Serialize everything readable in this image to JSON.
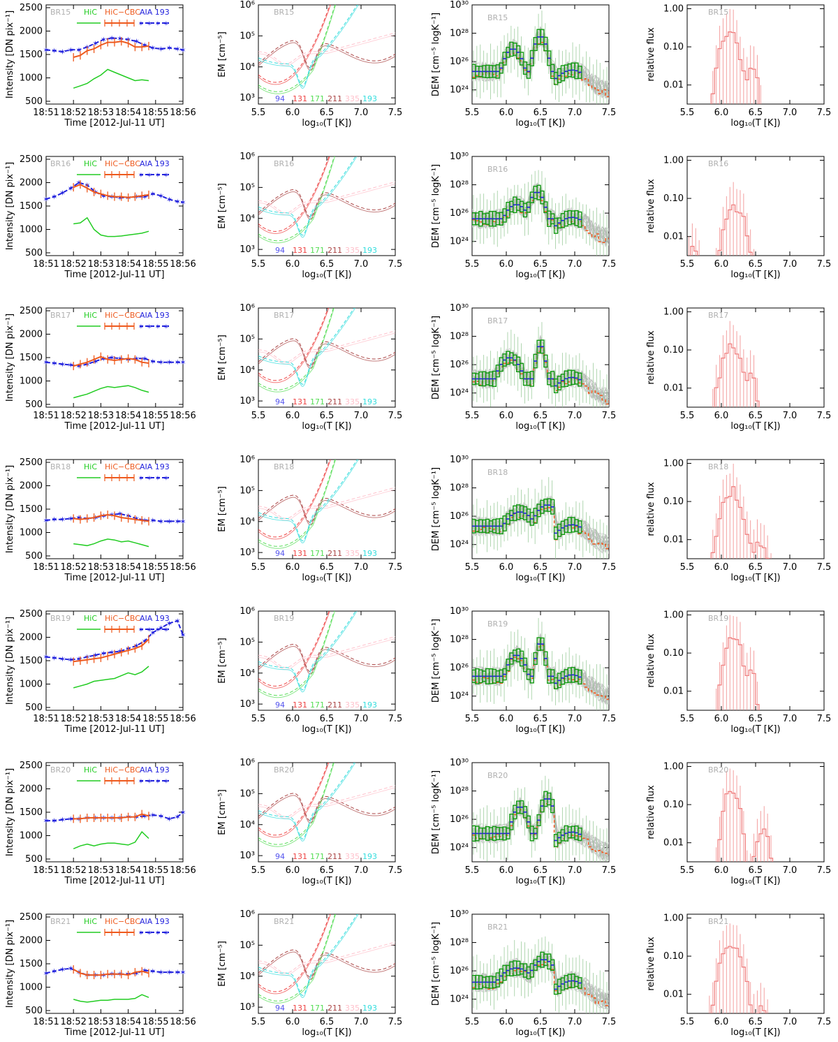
{
  "chart_data": {
    "type": "line",
    "title": "",
    "legend": {
      "hic": "HiC",
      "hic_cbc": "HiC−CBC",
      "aia193": "AIA 193"
    },
    "colors": {
      "hic": "#22cc22",
      "hic_cbc": "#ee5a1e",
      "aia": "#2222dd",
      "ch94": "#5555ee",
      "ch131": "#ee4444",
      "ch171": "#55dd55",
      "ch211": "#aa4444",
      "ch335": "#ffc0cb",
      "ch193": "#33dddd",
      "dem_box": "#119911",
      "dem_grey": "#b8b8b8",
      "flux": "#f08080"
    },
    "columns": {
      "lightcurve": {
        "xlabel": "Time [2012-Jul-11 UT]",
        "ylabel": "Intensity [DN pix⁻¹]",
        "xticks": [
          "18:51",
          "18:52",
          "18:53",
          "18:54",
          "18:55",
          "18:56"
        ],
        "yticks": [
          "500",
          "1000",
          "1500",
          "2000",
          "2500"
        ],
        "xlim": [
          0,
          5
        ],
        "ylim": [
          500,
          2500
        ]
      },
      "em": {
        "xlabel": "log₁₀(T [K])",
        "ylabel": "EM [cm⁻⁵]",
        "xticks": [
          "5.5",
          "6.0",
          "6.5",
          "7.0",
          "7.5"
        ],
        "yticks": [
          "10³",
          "10⁴",
          "10⁵",
          "10⁶"
        ],
        "xlim": [
          5.5,
          7.5
        ],
        "ylim_log": [
          2.8,
          6.0
        ],
        "channels": [
          "94",
          "131",
          "171",
          "211",
          "335",
          "193"
        ]
      },
      "dem": {
        "xlabel": "log₁₀(T [K])",
        "ylabel": "DEM [cm⁻⁵ logK⁻¹]",
        "xticks": [
          "5.5",
          "6.0",
          "6.5",
          "7.0",
          "7.5"
        ],
        "yticks": [
          "10²⁴",
          "10²⁶",
          "10²⁸",
          "10³⁰"
        ],
        "xlim": [
          5.5,
          7.5
        ],
        "ylim_log": [
          23,
          30
        ]
      },
      "flux": {
        "xlabel": "log₁₀(T [K])",
        "ylabel": "relative flux",
        "xticks": [
          "5.5",
          "6.0",
          "6.5",
          "7.0",
          "7.5"
        ],
        "yticks": [
          "0.01",
          "0.10",
          "1.00"
        ],
        "xlim": [
          5.5,
          7.5
        ],
        "ylim_log": [
          -2.5,
          0.1
        ]
      }
    },
    "rows": [
      {
        "id": "BR15",
        "lightcurve": {
          "aia_t": [
            0.0,
            0.3,
            0.6,
            0.9,
            1.2,
            1.5,
            1.8,
            2.1,
            2.4,
            2.7,
            3.0,
            3.3,
            3.6,
            3.9,
            4.2,
            4.5,
            4.8,
            5.0
          ],
          "aia_v": [
            1600,
            1580,
            1560,
            1600,
            1600,
            1660,
            1740,
            1820,
            1850,
            1840,
            1820,
            1780,
            1700,
            1640,
            1620,
            1640,
            1620,
            1600
          ],
          "cbc_t": [
            1.0,
            1.25,
            1.5,
            1.75,
            2.0,
            2.25,
            2.5,
            2.75,
            3.0,
            3.25,
            3.5,
            3.75
          ],
          "cbc_v": [
            1440,
            1480,
            1580,
            1620,
            1700,
            1760,
            1760,
            1780,
            1740,
            1660,
            1660,
            1680
          ],
          "hic_t": [
            1.0,
            1.25,
            1.5,
            1.75,
            2.0,
            2.25,
            2.5,
            2.75,
            3.0,
            3.25,
            3.5,
            3.75
          ],
          "hic_v": [
            780,
            830,
            880,
            980,
            1060,
            1180,
            1120,
            1060,
            1000,
            940,
            960,
            940
          ]
        },
        "dem_peaks": [
          [
            6.1,
            26.9,
            0.15
          ],
          [
            6.5,
            27.8,
            0.1
          ]
        ],
        "dem_base": 25.3,
        "flux_peaks": [
          [
            6.12,
            0.3,
            0.12
          ],
          [
            6.45,
            0.03,
            0.08
          ]
        ],
        "em_y": 3.3
      },
      {
        "id": "BR16",
        "lightcurve": {
          "aia_t": [
            0.0,
            0.3,
            0.6,
            0.9,
            1.2,
            1.5,
            1.8,
            2.1,
            2.4,
            2.7,
            3.0,
            3.3,
            3.6,
            3.9,
            4.2,
            4.5,
            4.8,
            5.0
          ],
          "aia_v": [
            1650,
            1700,
            1780,
            1880,
            2000,
            1950,
            1800,
            1720,
            1700,
            1680,
            1680,
            1700,
            1700,
            1760,
            1720,
            1640,
            1600,
            1580
          ],
          "cbc_t": [
            1.0,
            1.25,
            1.5,
            1.75,
            2.0,
            2.25,
            2.5,
            2.75,
            3.0,
            3.25,
            3.5,
            3.75
          ],
          "cbc_v": [
            1900,
            1960,
            1880,
            1800,
            1760,
            1720,
            1700,
            1700,
            1680,
            1700,
            1720,
            1740
          ],
          "hic_t": [
            1.0,
            1.25,
            1.5,
            1.75,
            2.0,
            2.25,
            2.5,
            2.75,
            3.0,
            3.25,
            3.5,
            3.75
          ],
          "hic_v": [
            1120,
            1140,
            1250,
            1000,
            880,
            850,
            850,
            860,
            880,
            900,
            920,
            960
          ]
        },
        "dem_peaks": [
          [
            6.15,
            26.6,
            0.2
          ],
          [
            6.45,
            27.5,
            0.12
          ]
        ],
        "dem_base": 25.6,
        "flux_peaks": [
          [
            6.2,
            0.06,
            0.14
          ],
          [
            5.6,
            0.005,
            0.08
          ]
        ],
        "em_y": 3.2
      },
      {
        "id": "BR17",
        "lightcurve": {
          "aia_t": [
            0.0,
            0.3,
            0.6,
            0.9,
            1.2,
            1.5,
            1.8,
            2.1,
            2.4,
            2.7,
            3.0,
            3.3,
            3.6,
            3.9,
            4.2,
            4.5,
            4.8,
            5.0
          ],
          "aia_v": [
            1400,
            1380,
            1360,
            1340,
            1320,
            1360,
            1420,
            1480,
            1500,
            1480,
            1460,
            1480,
            1480,
            1420,
            1400,
            1400,
            1400,
            1400
          ],
          "cbc_t": [
            1.0,
            1.25,
            1.5,
            1.75,
            2.0,
            2.25,
            2.5,
            2.75,
            3.0,
            3.25,
            3.5,
            3.75
          ],
          "cbc_v": [
            1320,
            1360,
            1400,
            1460,
            1520,
            1460,
            1440,
            1460,
            1480,
            1460,
            1400,
            1380
          ],
          "hic_t": [
            1.0,
            1.25,
            1.5,
            1.75,
            2.0,
            2.25,
            2.5,
            2.75,
            3.0,
            3.25,
            3.5,
            3.75
          ],
          "hic_v": [
            640,
            680,
            720,
            780,
            840,
            880,
            860,
            880,
            900,
            860,
            800,
            760
          ]
        },
        "dem_peaks": [
          [
            6.05,
            26.5,
            0.18
          ],
          [
            6.5,
            27.4,
            0.07
          ]
        ],
        "dem_base": 25.0,
        "flux_peaks": [
          [
            6.15,
            0.12,
            0.14
          ],
          [
            6.45,
            0.02,
            0.06
          ]
        ],
        "em_y": 3.3
      },
      {
        "id": "BR18",
        "lightcurve": {
          "aia_t": [
            0.0,
            0.3,
            0.6,
            0.9,
            1.2,
            1.5,
            1.8,
            2.1,
            2.4,
            2.7,
            3.0,
            3.3,
            3.6,
            3.9,
            4.2,
            4.5,
            4.8,
            5.0
          ],
          "aia_v": [
            1260,
            1280,
            1280,
            1300,
            1320,
            1300,
            1320,
            1360,
            1380,
            1400,
            1360,
            1300,
            1260,
            1260,
            1240,
            1240,
            1240,
            1240
          ],
          "cbc_t": [
            1.0,
            1.25,
            1.5,
            1.75,
            2.0,
            2.25,
            2.5,
            2.75,
            3.0,
            3.25,
            3.5,
            3.75
          ],
          "cbc_v": [
            1300,
            1280,
            1300,
            1320,
            1360,
            1380,
            1360,
            1320,
            1300,
            1280,
            1260,
            1240
          ],
          "hic_t": [
            1.0,
            1.25,
            1.5,
            1.75,
            2.0,
            2.25,
            2.5,
            2.75,
            3.0,
            3.25,
            3.5,
            3.75
          ],
          "hic_v": [
            760,
            740,
            720,
            760,
            820,
            860,
            840,
            800,
            820,
            780,
            740,
            700
          ]
        },
        "dem_peaks": [
          [
            6.2,
            26.3,
            0.25
          ],
          [
            6.6,
            26.8,
            0.2
          ]
        ],
        "dem_base": 25.3,
        "flux_peaks": [
          [
            6.15,
            0.2,
            0.14
          ],
          [
            6.55,
            0.008,
            0.12
          ]
        ],
        "em_y": 3.2
      },
      {
        "id": "BR19",
        "lightcurve": {
          "aia_t": [
            0.0,
            0.3,
            0.6,
            0.9,
            1.2,
            1.5,
            1.8,
            2.1,
            2.4,
            2.7,
            3.0,
            3.3,
            3.6,
            3.9,
            4.2,
            4.5,
            4.8,
            5.0
          ],
          "aia_v": [
            1580,
            1560,
            1540,
            1520,
            1540,
            1580,
            1620,
            1660,
            1680,
            1700,
            1760,
            1820,
            1920,
            2100,
            2200,
            2300,
            2350,
            2050
          ],
          "cbc_t": [
            1.0,
            1.25,
            1.5,
            1.75,
            2.0,
            2.25,
            2.5,
            2.75,
            3.0,
            3.25,
            3.5,
            3.75
          ],
          "cbc_v": [
            1480,
            1500,
            1520,
            1540,
            1560,
            1600,
            1640,
            1680,
            1720,
            1760,
            1820,
            1960
          ],
          "hic_t": [
            1.0,
            1.25,
            1.5,
            1.75,
            2.0,
            2.25,
            2.5,
            2.75,
            3.0,
            3.25,
            3.5,
            3.75
          ],
          "hic_v": [
            920,
            960,
            1000,
            1060,
            1080,
            1100,
            1120,
            1180,
            1240,
            1200,
            1260,
            1380
          ]
        },
        "dem_peaks": [
          [
            6.15,
            26.9,
            0.15
          ],
          [
            6.5,
            27.8,
            0.07
          ]
        ],
        "dem_base": 25.4,
        "flux_peaks": [
          [
            6.18,
            0.25,
            0.12
          ],
          [
            6.45,
            0.03,
            0.06
          ]
        ],
        "em_y": 3.4
      },
      {
        "id": "BR20",
        "lightcurve": {
          "aia_t": [
            0.0,
            0.3,
            0.6,
            0.9,
            1.2,
            1.5,
            1.8,
            2.1,
            2.4,
            2.7,
            3.0,
            3.3,
            3.6,
            3.9,
            4.2,
            4.5,
            4.8,
            5.0
          ],
          "aia_v": [
            1320,
            1320,
            1340,
            1360,
            1360,
            1380,
            1380,
            1380,
            1380,
            1380,
            1400,
            1400,
            1420,
            1440,
            1420,
            1360,
            1400,
            1500
          ],
          "cbc_t": [
            1.0,
            1.25,
            1.5,
            1.75,
            2.0,
            2.25,
            2.5,
            2.75,
            3.0,
            3.25,
            3.5,
            3.75
          ],
          "cbc_v": [
            1360,
            1360,
            1380,
            1380,
            1380,
            1380,
            1380,
            1380,
            1400,
            1400,
            1460,
            1420
          ],
          "hic_t": [
            1.0,
            1.25,
            1.5,
            1.75,
            2.0,
            2.25,
            2.5,
            2.75,
            3.0,
            3.25,
            3.5,
            3.75
          ],
          "hic_v": [
            720,
            780,
            820,
            780,
            820,
            840,
            840,
            820,
            800,
            860,
            1080,
            940
          ]
        },
        "dem_peaks": [
          [
            6.2,
            26.9,
            0.12
          ],
          [
            6.6,
            27.5,
            0.1
          ]
        ],
        "dem_base": 25.0,
        "flux_peaks": [
          [
            6.15,
            0.3,
            0.1
          ],
          [
            6.6,
            0.02,
            0.1
          ]
        ],
        "em_y": 3.3
      },
      {
        "id": "BR21",
        "lightcurve": {
          "aia_t": [
            0.0,
            0.3,
            0.6,
            0.9,
            1.2,
            1.5,
            1.8,
            2.1,
            2.4,
            2.7,
            3.0,
            3.3,
            3.6,
            3.9,
            4.2,
            4.5,
            4.8,
            5.0
          ],
          "aia_v": [
            1300,
            1340,
            1380,
            1400,
            1320,
            1260,
            1260,
            1260,
            1280,
            1280,
            1280,
            1300,
            1360,
            1340,
            1320,
            1320,
            1320,
            1320
          ],
          "cbc_t": [
            1.0,
            1.25,
            1.5,
            1.75,
            2.0,
            2.25,
            2.5,
            2.75,
            3.0,
            3.25,
            3.5,
            3.75
          ],
          "cbc_v": [
            1380,
            1300,
            1260,
            1260,
            1260,
            1280,
            1280,
            1280,
            1260,
            1320,
            1340,
            1300
          ],
          "hic_t": [
            1.0,
            1.25,
            1.5,
            1.75,
            2.0,
            2.25,
            2.5,
            2.75,
            3.0,
            3.25,
            3.5,
            3.75
          ],
          "hic_v": [
            740,
            700,
            680,
            700,
            720,
            720,
            740,
            740,
            740,
            760,
            840,
            780
          ]
        },
        "dem_peaks": [
          [
            6.15,
            26.2,
            0.3
          ],
          [
            6.55,
            26.8,
            0.2
          ]
        ],
        "dem_base": 25.2,
        "flux_peaks": [
          [
            6.15,
            0.2,
            0.15
          ],
          [
            6.6,
            0.005,
            0.08
          ]
        ],
        "em_y": 3.2
      }
    ]
  }
}
